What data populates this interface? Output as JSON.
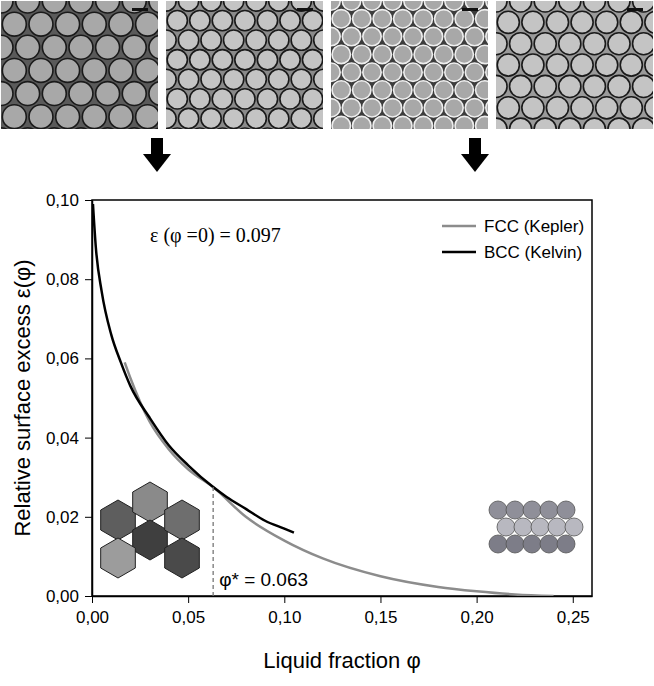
{
  "chart_data": {
    "type": "line",
    "x_label": "Liquid fraction φ",
    "y_label": "Relative surface excess ε(φ)",
    "xlim": [
      0,
      0.26
    ],
    "ylim": [
      0,
      0.1
    ],
    "xticks": [
      {
        "value": 0,
        "label": "0,00"
      },
      {
        "value": 0.05,
        "label": "0,05"
      },
      {
        "value": 0.1,
        "label": "0,10"
      },
      {
        "value": 0.15,
        "label": "0,15"
      },
      {
        "value": 0.2,
        "label": "0,20"
      },
      {
        "value": 0.25,
        "label": "0,25"
      }
    ],
    "yticks": [
      {
        "value": 0,
        "label": "0,00"
      },
      {
        "value": 0.02,
        "label": "0,02"
      },
      {
        "value": 0.04,
        "label": "0,04"
      },
      {
        "value": 0.06,
        "label": "0,06"
      },
      {
        "value": 0.08,
        "label": "0,08"
      },
      {
        "value": 0.1,
        "label": "0,10"
      }
    ],
    "legend": "top-right",
    "series": [
      {
        "name": "FCC (Kepler)",
        "color": "#8c8c8c",
        "x": [
          0.017,
          0.02,
          0.03,
          0.04,
          0.05,
          0.063,
          0.08,
          0.1,
          0.12,
          0.15,
          0.18,
          0.2,
          0.22,
          0.24
        ],
        "values": [
          0.059,
          0.055,
          0.044,
          0.037,
          0.032,
          0.0275,
          0.02,
          0.014,
          0.0095,
          0.005,
          0.0023,
          0.0012,
          0.0004,
          0.0
        ]
      },
      {
        "name": "BCC (Kelvin)",
        "color": "#000000",
        "x": [
          0.0005,
          0.002,
          0.005,
          0.01,
          0.015,
          0.02,
          0.03,
          0.04,
          0.05,
          0.063,
          0.07,
          0.08,
          0.09,
          0.1,
          0.105
        ],
        "values": [
          0.099,
          0.088,
          0.077,
          0.066,
          0.059,
          0.053,
          0.045,
          0.038,
          0.033,
          0.0275,
          0.025,
          0.022,
          0.019,
          0.017,
          0.016
        ]
      }
    ],
    "annotations": [
      {
        "text": "ε (φ =0) = 0.097"
      },
      {
        "text": "φ* = 0.063",
        "x": 0.063,
        "y": 0.0275
      }
    ]
  }
}
